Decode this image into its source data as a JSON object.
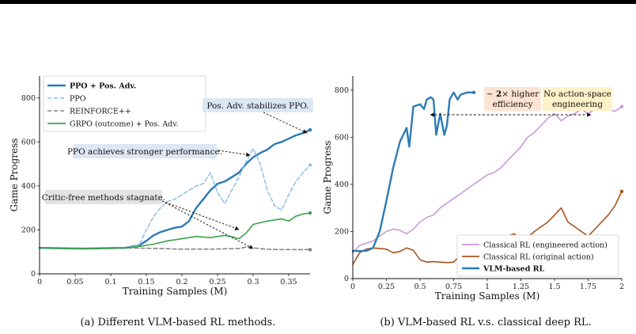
{
  "colors": {
    "ppo_pos": "#2c7bb6",
    "ppo": "#8fbfe0",
    "reinforce": "#808080",
    "grpo": "#3aa34a",
    "classical_eng": "#c89ad8",
    "classical_orig": "#a9531f",
    "vlm": "#2c7bb6",
    "annot_blue_bg": "#dde6f3",
    "annot_gray_bg": "#e3e3e3",
    "annot_orange_bg": "#fde3d2",
    "annot_yellow_bg": "#fff2c8"
  },
  "chart_data": [
    {
      "type": "line",
      "caption": "(a) Different VLM-based RL methods.",
      "xlabel": "Training Samples (M)",
      "ylabel": "Game Progress",
      "xlim": [
        0,
        0.38
      ],
      "ylim": [
        0,
        900
      ],
      "xticks": [
        "0",
        "0.05",
        "0.1",
        "0.15",
        "0.2",
        "0.25",
        "0.3",
        "0.35"
      ],
      "xtick_values": [
        0,
        0.05,
        0.1,
        0.15,
        0.2,
        0.25,
        0.3,
        0.35
      ],
      "yticks": [
        "0",
        "200",
        "400",
        "600",
        "800"
      ],
      "ytick_values": [
        0,
        200,
        400,
        600,
        800
      ],
      "legend_position": "top-left",
      "series": [
        {
          "name": "PPO + Pos. Adv.",
          "style": "solid-bold",
          "color": "#2c7bb6",
          "x": [
            0,
            0.02,
            0.04,
            0.06,
            0.08,
            0.1,
            0.12,
            0.14,
            0.15,
            0.16,
            0.17,
            0.18,
            0.19,
            0.2,
            0.21,
            0.22,
            0.23,
            0.24,
            0.25,
            0.26,
            0.27,
            0.28,
            0.29,
            0.3,
            0.31,
            0.32,
            0.33,
            0.34,
            0.35,
            0.36,
            0.37,
            0.38
          ],
          "y": [
            118,
            117,
            116,
            115,
            116,
            117,
            118,
            130,
            150,
            175,
            190,
            200,
            210,
            215,
            240,
            300,
            340,
            380,
            410,
            420,
            440,
            460,
            500,
            530,
            550,
            565,
            590,
            600,
            615,
            630,
            640,
            655
          ]
        },
        {
          "name": "PPO",
          "style": "dashed",
          "color": "#8fbfe0",
          "x": [
            0,
            0.02,
            0.04,
            0.06,
            0.08,
            0.1,
            0.12,
            0.14,
            0.15,
            0.16,
            0.17,
            0.18,
            0.19,
            0.2,
            0.21,
            0.22,
            0.23,
            0.24,
            0.25,
            0.26,
            0.27,
            0.28,
            0.29,
            0.3,
            0.31,
            0.32,
            0.33,
            0.34,
            0.35,
            0.36,
            0.37,
            0.38
          ],
          "y": [
            118,
            117,
            116,
            115,
            116,
            117,
            118,
            130,
            200,
            260,
            300,
            330,
            340,
            360,
            380,
            400,
            410,
            460,
            370,
            320,
            380,
            440,
            510,
            570,
            500,
            380,
            310,
            290,
            360,
            420,
            460,
            495
          ]
        },
        {
          "name": "REINFORCE++",
          "style": "dashed",
          "color": "#808080",
          "x": [
            0,
            0.02,
            0.04,
            0.06,
            0.08,
            0.1,
            0.12,
            0.14,
            0.16,
            0.18,
            0.2,
            0.22,
            0.24,
            0.26,
            0.28,
            0.29,
            0.3,
            0.32,
            0.34,
            0.36,
            0.38
          ],
          "y": [
            118,
            117,
            116,
            115,
            116,
            117,
            118,
            117,
            116,
            114,
            112,
            113,
            112,
            114,
            115,
            122,
            118,
            112,
            110,
            110,
            110
          ]
        },
        {
          "name": "GRPO (outcome) + Pos. Adv.",
          "style": "solid",
          "color": "#3aa34a",
          "x": [
            0,
            0.02,
            0.04,
            0.06,
            0.08,
            0.1,
            0.12,
            0.14,
            0.16,
            0.18,
            0.2,
            0.22,
            0.24,
            0.26,
            0.27,
            0.28,
            0.29,
            0.3,
            0.32,
            0.34,
            0.35,
            0.36,
            0.37,
            0.38
          ],
          "y": [
            118,
            117,
            116,
            115,
            116,
            117,
            118,
            125,
            135,
            150,
            160,
            170,
            165,
            175,
            168,
            160,
            185,
            225,
            240,
            250,
            240,
            262,
            272,
            277
          ]
        }
      ],
      "annotations": [
        {
          "text": "Pos. Adv. stabilizes PPO.",
          "bg": "blue",
          "target": [
            0.375,
            650
          ]
        },
        {
          "text": "PPO achieves stronger performance.",
          "bg": "blue",
          "target": [
            0.298,
            570
          ]
        },
        {
          "text": "Critic-free methods stagnate.",
          "bg": "gray",
          "targets": [
            [
              0.285,
              165
            ],
            [
              0.285,
              118
            ]
          ]
        }
      ]
    },
    {
      "type": "line",
      "caption": "(b) VLM-based RL v.s. classical deep RL.",
      "xlabel": "Training Samples (M)",
      "ylabel": "Game Progress",
      "xlim": [
        0,
        2
      ],
      "ylim": [
        0,
        860
      ],
      "xticks": [
        "0",
        "0.25",
        "0.5",
        "0.75",
        "1",
        "1.25",
        "1.5",
        "1.75",
        "2"
      ],
      "xtick_values": [
        0,
        0.25,
        0.5,
        0.75,
        1,
        1.25,
        1.5,
        1.75,
        2
      ],
      "yticks": [
        "0",
        "200",
        "400",
        "600",
        "800"
      ],
      "ytick_values": [
        0,
        200,
        400,
        600,
        800
      ],
      "legend_position": "bottom-right",
      "series": [
        {
          "name": "Classical RL (engineered action)",
          "style": "solid",
          "color": "#c89ad8",
          "x": [
            0,
            0.05,
            0.1,
            0.15,
            0.2,
            0.25,
            0.3,
            0.35,
            0.4,
            0.45,
            0.5,
            0.55,
            0.6,
            0.65,
            0.7,
            0.75,
            0.8,
            0.85,
            0.9,
            0.95,
            1.0,
            1.05,
            1.1,
            1.15,
            1.2,
            1.25,
            1.3,
            1.35,
            1.4,
            1.45,
            1.5,
            1.55,
            1.6,
            1.65,
            1.7,
            1.75,
            1.8,
            1.85,
            1.9,
            1.95,
            2.0
          ],
          "y": [
            110,
            140,
            150,
            160,
            180,
            200,
            210,
            205,
            190,
            210,
            240,
            260,
            270,
            300,
            320,
            340,
            360,
            380,
            400,
            420,
            440,
            450,
            470,
            500,
            530,
            560,
            600,
            620,
            650,
            680,
            700,
            670,
            690,
            700,
            720,
            700,
            720,
            740,
            720,
            710,
            730
          ]
        },
        {
          "name": "Classical RL (original action)",
          "style": "solid",
          "color": "#a9531f",
          "x": [
            0,
            0.05,
            0.1,
            0.15,
            0.2,
            0.25,
            0.3,
            0.35,
            0.4,
            0.45,
            0.5,
            0.55,
            0.6,
            0.65,
            0.7,
            0.75,
            0.8,
            0.85,
            0.9,
            0.95,
            1.0,
            1.05,
            1.1,
            1.15,
            1.2,
            1.25,
            1.3,
            1.35,
            1.4,
            1.45,
            1.5,
            1.55,
            1.6,
            1.65,
            1.7,
            1.75,
            1.8,
            1.85,
            1.9,
            1.95,
            2.0
          ],
          "y": [
            60,
            110,
            125,
            130,
            128,
            125,
            110,
            115,
            130,
            120,
            80,
            70,
            72,
            70,
            68,
            70,
            100,
            110,
            120,
            130,
            140,
            160,
            170,
            180,
            190,
            170,
            175,
            200,
            220,
            240,
            270,
            300,
            240,
            220,
            200,
            180,
            210,
            240,
            270,
            310,
            370
          ]
        },
        {
          "name": "VLM-based RL",
          "style": "solid-bold",
          "color": "#2c7bb6",
          "x": [
            0,
            0.05,
            0.1,
            0.15,
            0.2,
            0.25,
            0.3,
            0.35,
            0.4,
            0.42,
            0.45,
            0.5,
            0.53,
            0.55,
            0.58,
            0.6,
            0.62,
            0.65,
            0.68,
            0.7,
            0.72,
            0.75,
            0.78,
            0.8,
            0.85,
            0.9
          ],
          "y": [
            118,
            117,
            118,
            130,
            200,
            330,
            470,
            580,
            640,
            560,
            730,
            740,
            720,
            760,
            770,
            760,
            610,
            700,
            610,
            650,
            760,
            790,
            760,
            780,
            790,
            790
          ]
        }
      ],
      "annotations": [
        {
          "text_prefix": "~ ",
          "text_bold": "2",
          "text_suffix": "× higher",
          "text_line2": "efficiency",
          "bg": "orange"
        },
        {
          "text_line1": "No action-space",
          "text_line2": "engineering",
          "bg": "yellow"
        }
      ]
    }
  ]
}
